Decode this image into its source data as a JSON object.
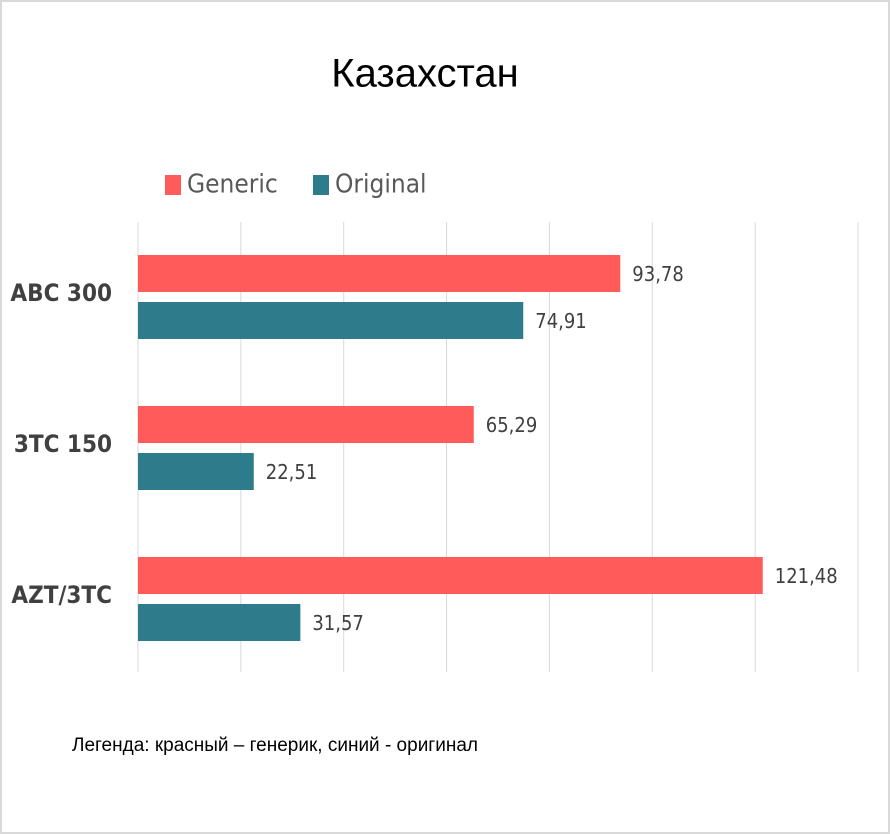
{
  "chart_data": {
    "type": "hbar",
    "title": "Казахстан",
    "categories": [
      "ABC 300",
      "3TC 150",
      "AZT/3TC"
    ],
    "series": [
      {
        "name": "Generic",
        "color": "#ff5b5b",
        "values": [
          93.78,
          65.29,
          121.48
        ],
        "value_labels": [
          "93,78",
          "65,29",
          "121,48"
        ]
      },
      {
        "name": "Original",
        "color": "#2e7b8c",
        "values": [
          74.91,
          22.51,
          31.57
        ],
        "value_labels": [
          "74,91",
          "22,51",
          "31,57"
        ]
      }
    ],
    "xlim": [
      0,
      140
    ],
    "xticks": [
      0,
      20,
      40,
      60,
      80,
      100,
      120,
      140
    ],
    "tick_labels": false,
    "grid": true,
    "legend": "top",
    "note": "Легенда: красный – генерик, синий - оригинал"
  }
}
